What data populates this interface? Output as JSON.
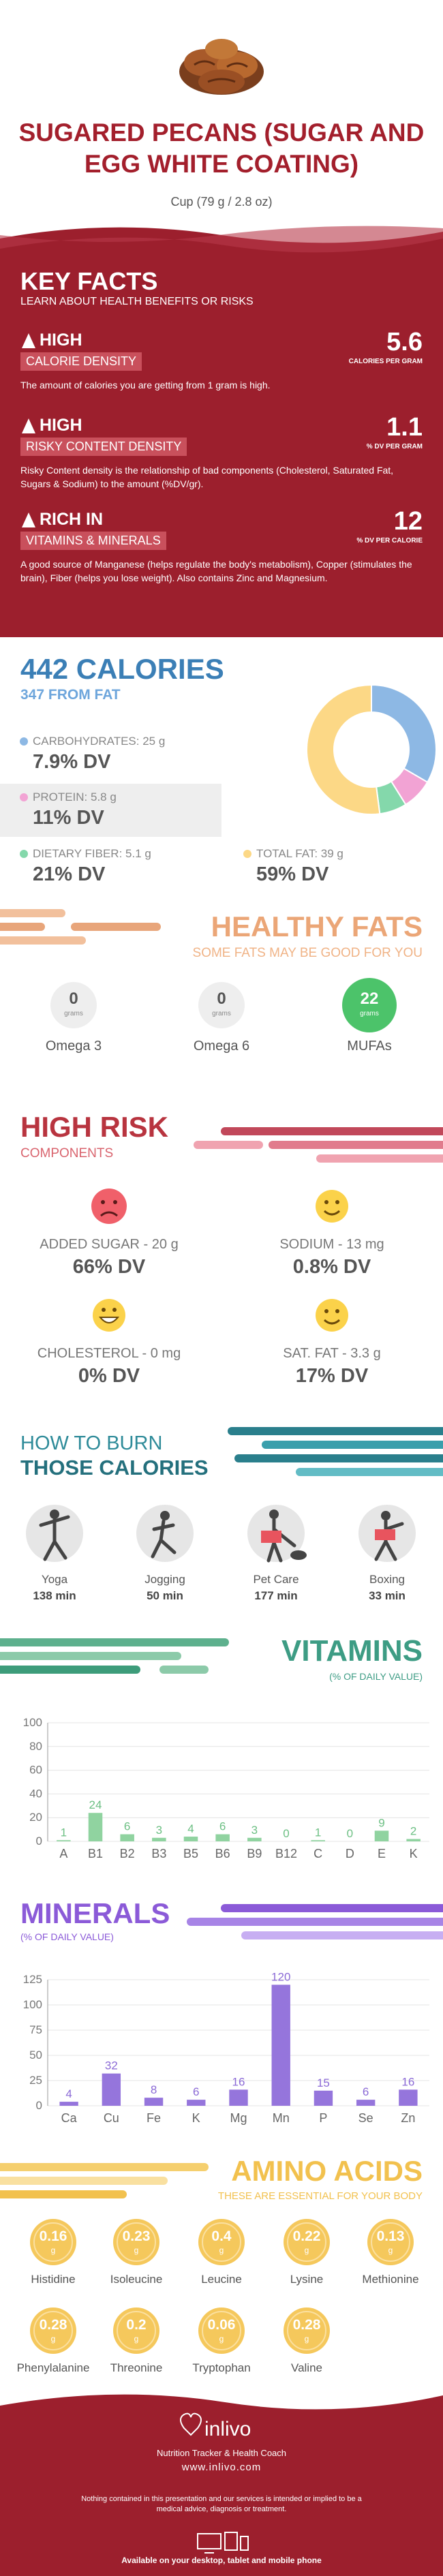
{
  "header": {
    "title": "SUGARED PECANS (SUGAR AND EGG WHITE COATING)",
    "serving": "Cup (79 g / 2.8 oz)"
  },
  "key_facts": {
    "title": "KEY FACTS",
    "subtitle": "LEARN ABOUT HEALTH BENEFITS OR RISKS",
    "facts": [
      {
        "level": "HIGH",
        "name": "CALORIE DENSITY",
        "value": "5.6",
        "unit": "CALORIES PER GRAM",
        "text": "The amount of calories you are getting from 1 gram is high."
      },
      {
        "level": "HIGH",
        "name": "RISKY CONTENT DENSITY",
        "value": "1.1",
        "unit": "% DV PER GRAM",
        "text": "Risky Content density is the relationship of bad components (Cholesterol, Saturated Fat, Sugars & Sodium) to the amount (%DV/gr)."
      },
      {
        "level": "RICH  IN",
        "name": "VITAMINS & MINERALS",
        "value": "12",
        "unit": "% DV PER CALORIE",
        "text": "A good source of Manganese (helps regulate the body's metabolism), Copper (stimulates the brain), Fiber (helps you lose weight). Also contains Zinc and Magnesium."
      }
    ]
  },
  "calories": {
    "title": "442 CALORIES",
    "subtitle": "347 FROM FAT",
    "nutrients": [
      {
        "label": "CARBOHYDRATES: 25 g",
        "dv": "7.9% DV"
      },
      {
        "label": "PROTEIN: 5.8 g",
        "dv": "11% DV"
      },
      {
        "label": "DIETARY FIBER: 5.1 g",
        "dv": "21% DV"
      },
      {
        "label": "TOTAL FAT: 39 g",
        "dv": "59% DV"
      }
    ]
  },
  "healthy_fats": {
    "title": "HEALTHY FATS",
    "subtitle": "SOME FATS MAY BE GOOD FOR YOU",
    "items": [
      {
        "value": "0",
        "unit": "grams",
        "name": "Omega 3"
      },
      {
        "value": "0",
        "unit": "grams",
        "name": "Omega 6"
      },
      {
        "value": "22",
        "unit": "grams",
        "name": "MUFAs"
      }
    ]
  },
  "high_risk": {
    "title": "HIGH RISK",
    "subtitle": "COMPONENTS",
    "items": [
      {
        "label": "ADDED SUGAR - 20 g",
        "dv": "66% DV"
      },
      {
        "label": "SODIUM - 13 mg",
        "dv": "0.8% DV"
      },
      {
        "label": "CHOLESTEROL - 0 mg",
        "dv": "0% DV"
      },
      {
        "label": "SAT. FAT - 3.3 g",
        "dv": "17% DV"
      }
    ]
  },
  "burn": {
    "title_1": "HOW TO BURN",
    "title_2": "THOSE CALORIES",
    "activities": [
      {
        "name": "Yoga",
        "time": "138 min"
      },
      {
        "name": "Jogging",
        "time": "50 min"
      },
      {
        "name": "Pet Care",
        "time": "177 min"
      },
      {
        "name": "Boxing",
        "time": "33 min"
      }
    ]
  },
  "amino_acids": {
    "title": "AMINO ACIDS",
    "subtitle": "THESE ARE ESSENTIAL FOR YOUR BODY",
    "items": [
      {
        "value": "0.16",
        "unit": "g",
        "name": "Histidine"
      },
      {
        "value": "0.23",
        "unit": "g",
        "name": "Isoleucine"
      },
      {
        "value": "0.4",
        "unit": "g",
        "name": "Leucine"
      },
      {
        "value": "0.22",
        "unit": "g",
        "name": "Lysine"
      },
      {
        "value": "0.13",
        "unit": "g",
        "name": "Methionine"
      },
      {
        "value": "0.28",
        "unit": "g",
        "name": "Phenylalanine"
      },
      {
        "value": "0.2",
        "unit": "g",
        "name": "Threonine"
      },
      {
        "value": "0.06",
        "unit": "g",
        "name": "Tryptophan"
      },
      {
        "value": "0.28",
        "unit": "g",
        "name": "Valine"
      }
    ]
  },
  "footer": {
    "brand": "inlivo",
    "tagline": "Nutrition Tracker & Health Coach",
    "url": "www.inlivo.com",
    "disclaimer": "Nothing contained in this presentation and our services is intended or implied to be a medical advice, diagnosis or treatment.",
    "available": "Available on your desktop, tablet and mobile phone"
  },
  "chart_data": [
    {
      "type": "pie",
      "categories": [
        "CARBOHYDRATES",
        "PROTEIN",
        "DIETARY FIBER",
        "TOTAL FAT"
      ],
      "values": [
        25,
        5.8,
        5.1,
        39
      ],
      "colors": [
        "#8db8e4",
        "#f2a3d4",
        "#84d8ab",
        "#fcd886"
      ]
    },
    {
      "type": "bar",
      "title": "VITAMINS",
      "subtitle": "(% OF DAILY VALUE)",
      "categories": [
        "A",
        "B1",
        "B2",
        "B3",
        "B5",
        "B6",
        "B9",
        "B12",
        "C",
        "D",
        "E",
        "K"
      ],
      "values": [
        1,
        24,
        6,
        3,
        4,
        6,
        3,
        0,
        1,
        0,
        9,
        2
      ],
      "color": "#90d3a0",
      "ylim": [
        0,
        100
      ],
      "yticks": [
        0,
        20,
        40,
        60,
        80,
        100
      ],
      "grid": true
    },
    {
      "type": "bar",
      "title": "MINERALS",
      "subtitle": "(% OF DAILY VALUE)",
      "categories": [
        "Ca",
        "Cu",
        "Fe",
        "K",
        "Mg",
        "Mn",
        "P",
        "Se",
        "Zn"
      ],
      "values": [
        4,
        32,
        8,
        6,
        16,
        120,
        15,
        6,
        16
      ],
      "color": "#9575dc",
      "ylim": [
        0,
        125
      ],
      "yticks": [
        0,
        25,
        50,
        75,
        100,
        125
      ],
      "grid": true
    }
  ]
}
